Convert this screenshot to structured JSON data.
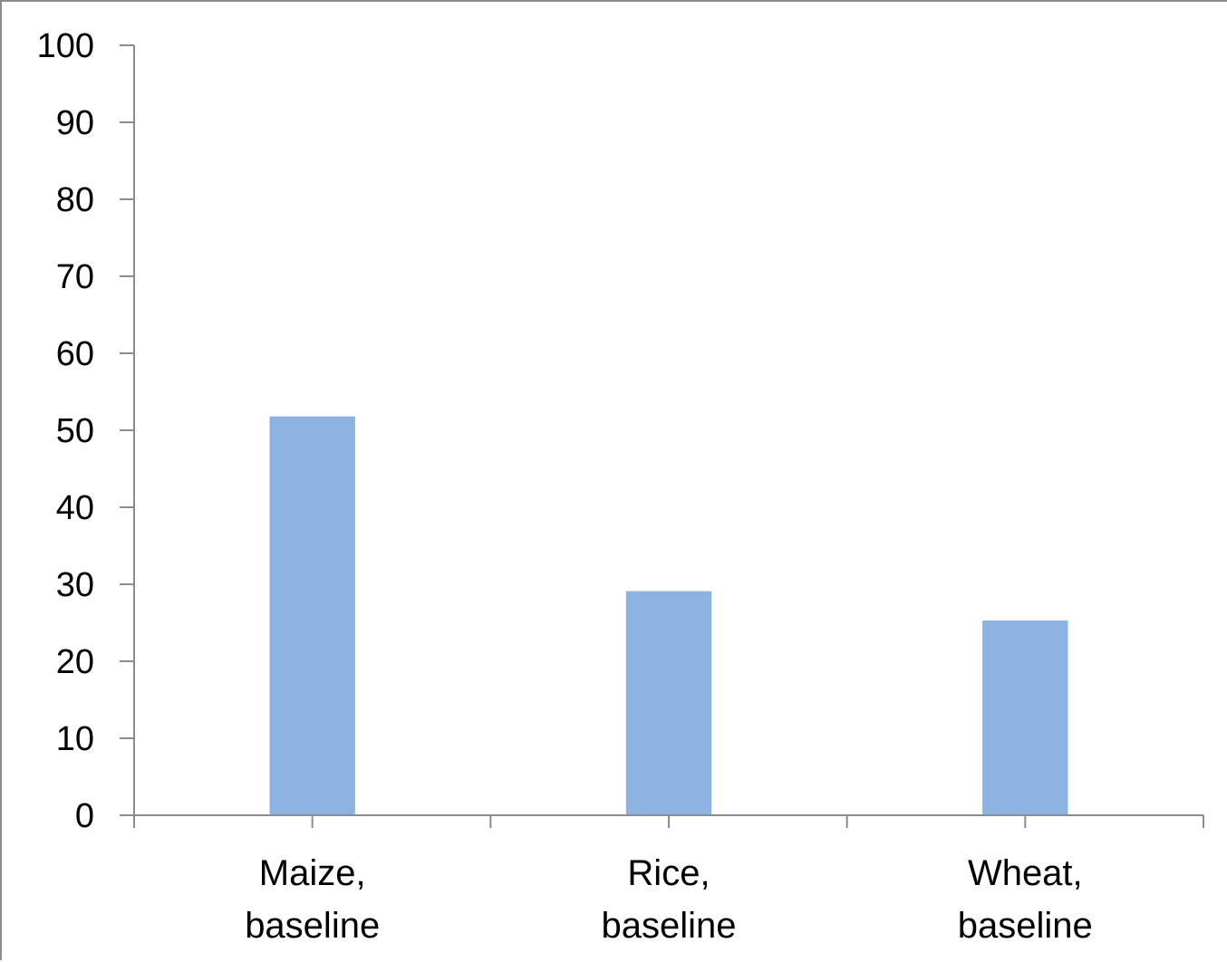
{
  "chart_data": {
    "type": "bar",
    "categories": [
      [
        "Maize,",
        "baseline"
      ],
      [
        "Rice,",
        "baseline"
      ],
      [
        "Wheat,",
        "baseline"
      ]
    ],
    "values": [
      51.8,
      29.1,
      25.3
    ],
    "ylim": [
      0,
      100
    ],
    "yticks": [
      0,
      10,
      20,
      30,
      40,
      50,
      60,
      70,
      80,
      90,
      100
    ],
    "grid": false,
    "legend": "none",
    "bar_color": "#8db3e2",
    "axis_color": "#8c8c8c"
  }
}
